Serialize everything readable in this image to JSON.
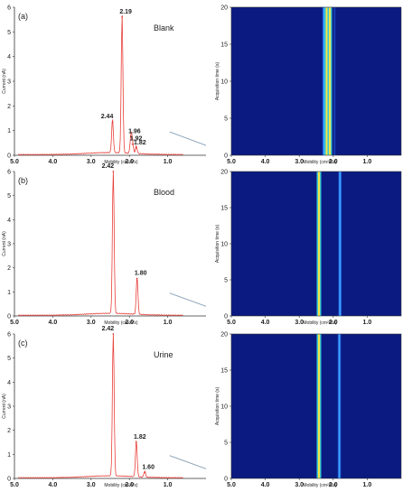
{
  "colors": {
    "trace": "#e8403a",
    "reference_line": "#8aa2b8",
    "axis": "#333333",
    "heatmap_background": "#0a1a80",
    "band_main": "#f5e34a",
    "band_blue": "#3fa8ff"
  },
  "chart_data": [
    {
      "type": "line",
      "panel_label": "(a)",
      "title": "Blank",
      "xlabel": "Mobility (cm²/Vs)",
      "ylabel": "Current (nA)",
      "xlim": [
        5.0,
        0.0
      ],
      "ylim": [
        0,
        6
      ],
      "x_ticks": [
        "5.0",
        "4.0",
        "3.0",
        "2.0",
        "1.0"
      ],
      "y_ticks": [
        "0",
        "1",
        "2",
        "3",
        "4",
        "5",
        "6"
      ],
      "peaks": [
        {
          "x": 2.44,
          "y": 1.35,
          "label": "2.44"
        },
        {
          "x": 2.19,
          "y": 5.6,
          "label": "2.19"
        },
        {
          "x": 1.96,
          "y": 0.75,
          "label": "1.96"
        },
        {
          "x": 1.92,
          "y": 0.45,
          "label": "1.92"
        },
        {
          "x": 1.82,
          "y": 0.3,
          "label": "1.82"
        }
      ],
      "reference_line": {
        "x": [
          0.95,
          0.0
        ],
        "y": [
          0.95,
          0.4
        ]
      }
    },
    {
      "type": "line",
      "panel_label": "(b)",
      "title": "Blood",
      "xlabel": "Mobility (cm²/Vs)",
      "ylabel": "Current (nA)",
      "xlim": [
        5.0,
        0.0
      ],
      "ylim": [
        0,
        6
      ],
      "x_ticks": [
        "5.0",
        "4.0",
        "3.0",
        "2.0",
        "1.0"
      ],
      "y_ticks": [
        "0",
        "1",
        "2",
        "3",
        "4",
        "5",
        "6"
      ],
      "peaks": [
        {
          "x": 2.42,
          "y": 6.2,
          "label": "2.42"
        },
        {
          "x": 1.8,
          "y": 1.55,
          "label": "1.80"
        }
      ],
      "reference_line": {
        "x": [
          0.95,
          0.0
        ],
        "y": [
          0.95,
          0.4
        ]
      }
    },
    {
      "type": "line",
      "panel_label": "(c)",
      "title": "Urine",
      "xlabel": "Mobility (cm²/Vs)",
      "ylabel": "Current (nA)",
      "xlim": [
        5.0,
        0.0
      ],
      "ylim": [
        0,
        6
      ],
      "x_ticks": [
        "5.0",
        "4.0",
        "3.0",
        "2.0",
        "1.0"
      ],
      "y_ticks": [
        "0",
        "1",
        "2",
        "3",
        "4",
        "5",
        "6"
      ],
      "peaks": [
        {
          "x": 2.42,
          "y": 6.2,
          "label": "2.42"
        },
        {
          "x": 1.82,
          "y": 1.5,
          "label": "1.82"
        },
        {
          "x": 1.6,
          "y": 0.25,
          "label": "1.60"
        }
      ],
      "reference_line": {
        "x": [
          0.95,
          0.0
        ],
        "y": [
          0.95,
          0.4
        ]
      }
    },
    {
      "type": "heatmap",
      "ylabel": "Acquisition time (s)",
      "xlabel": "Mobility (cm²/Vs)",
      "xlim": [
        5.0,
        0.0
      ],
      "ylim": [
        0,
        20
      ],
      "x_ticks": [
        "5.0",
        "4.0",
        "3.0",
        "2.0",
        "1.0"
      ],
      "y_ticks": [
        "0",
        "5",
        "10",
        "15",
        "20"
      ],
      "bands": [
        {
          "x": 2.27,
          "intensity": "medium"
        },
        {
          "x": 2.19,
          "intensity": "high"
        },
        {
          "x": 2.1,
          "intensity": "high"
        },
        {
          "x": 1.96,
          "intensity": "low"
        }
      ]
    },
    {
      "type": "heatmap",
      "ylabel": "Acquisition time (s)",
      "xlabel": "Mobility (cm²/Vs)",
      "xlim": [
        5.0,
        0.0
      ],
      "ylim": [
        0,
        20
      ],
      "x_ticks": [
        "5.0",
        "4.0",
        "3.0",
        "2.0",
        "1.0"
      ],
      "y_ticks": [
        "0",
        "5",
        "10",
        "15",
        "20"
      ],
      "bands": [
        {
          "x": 2.42,
          "intensity": "high"
        },
        {
          "x": 1.8,
          "intensity": "medium"
        }
      ]
    },
    {
      "type": "heatmap",
      "ylabel": "Acquisition time (s)",
      "xlabel": "Mobility (cm²/Vs)",
      "xlim": [
        5.0,
        0.0
      ],
      "ylim": [
        0,
        20
      ],
      "x_ticks": [
        "5.0",
        "4.0",
        "3.0",
        "2.0",
        "1.0"
      ],
      "y_ticks": [
        "0",
        "5",
        "10",
        "15",
        "20"
      ],
      "bands": [
        {
          "x": 2.42,
          "intensity": "high"
        },
        {
          "x": 1.82,
          "intensity": "medium"
        }
      ]
    }
  ]
}
